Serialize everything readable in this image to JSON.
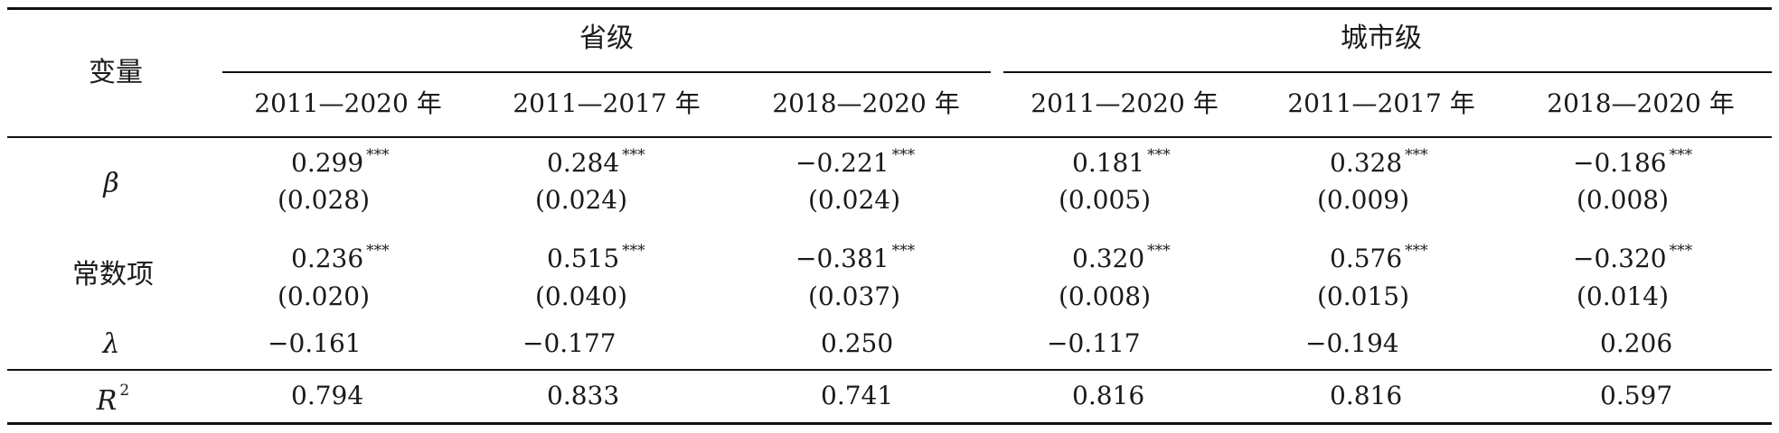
{
  "header": {
    "variable_label": "变量",
    "group_province": "省级",
    "group_city": "城市级",
    "periods": [
      "2011—2020 年",
      "2011—2017 年",
      "2018—2020 年",
      "2011—2020 年",
      "2011—2017 年",
      "2018—2020 年"
    ]
  },
  "rows": [
    {
      "label": "β",
      "coef": [
        "0.299",
        "0.284",
        "−0.221",
        "0.181",
        "0.328",
        "−0.186"
      ],
      "stars": [
        "***",
        "***",
        "***",
        "***",
        "***",
        "***"
      ],
      "se": [
        "(0.028)",
        "(0.024)",
        "(0.024)",
        "(0.005)",
        "(0.009)",
        "(0.008)"
      ]
    },
    {
      "label": "常数项",
      "coef": [
        "0.236",
        "0.515",
        "−0.381",
        "0.320",
        "0.576",
        "−0.320"
      ],
      "stars": [
        "***",
        "***",
        "***",
        "***",
        "***",
        "***"
      ],
      "se": [
        "(0.020)",
        "(0.040)",
        "(0.037)",
        "(0.008)",
        "(0.015)",
        "(0.014)"
      ]
    },
    {
      "label": "λ",
      "values": [
        "−0.161",
        "−0.177",
        "0.250",
        "−0.117",
        "−0.194",
        "0.206"
      ]
    }
  ],
  "r2": {
    "label": "R",
    "label_sup": "2",
    "values": [
      "0.794",
      "0.833",
      "0.741",
      "0.816",
      "0.816",
      "0.597"
    ]
  }
}
